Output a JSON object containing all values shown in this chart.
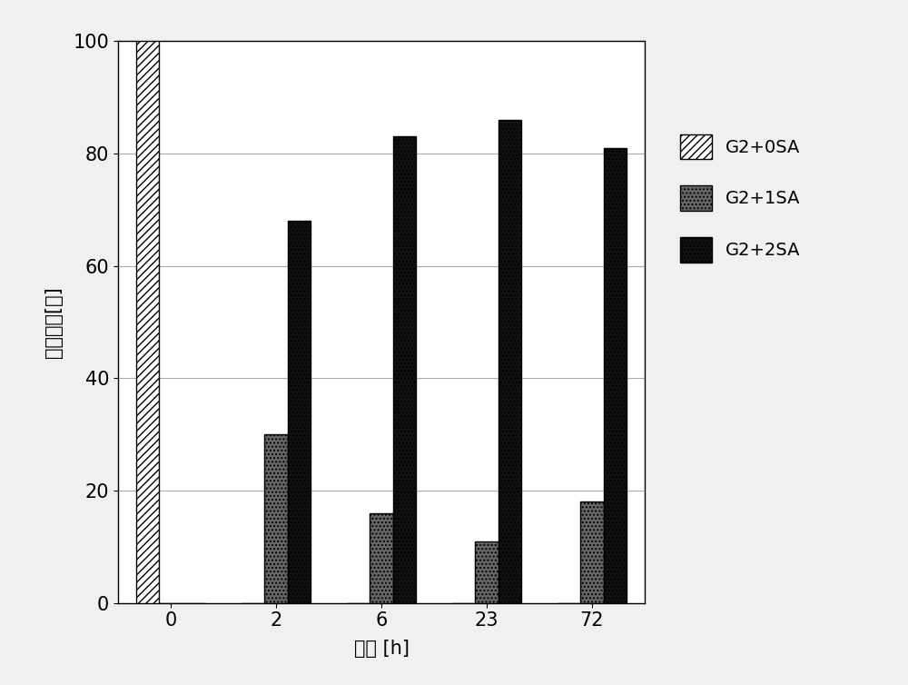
{
  "time_labels": [
    "0",
    "2",
    "6",
    "23",
    "72"
  ],
  "series": {
    "G2+0SA": [
      100,
      0,
      0,
      0,
      0
    ],
    "G2+1SA": [
      0,
      30,
      16,
      11,
      18
    ],
    "G2+2SA": [
      0,
      68,
      83,
      86,
      81
    ]
  },
  "ylabel": "相对含量[％]",
  "xlabel": "时间 [h]",
  "ylim": [
    0,
    100
  ],
  "yticks": [
    0,
    20,
    40,
    60,
    80,
    100
  ],
  "bar_width": 0.22,
  "legend_labels": [
    "G2+0SA",
    "G2+1SA",
    "G2+2SA"
  ],
  "background_color": "#f0f0f0",
  "plot_bg_color": "#ffffff",
  "grid_color": "#aaaaaa",
  "axis_fontsize": 15,
  "tick_fontsize": 15,
  "legend_fontsize": 14
}
